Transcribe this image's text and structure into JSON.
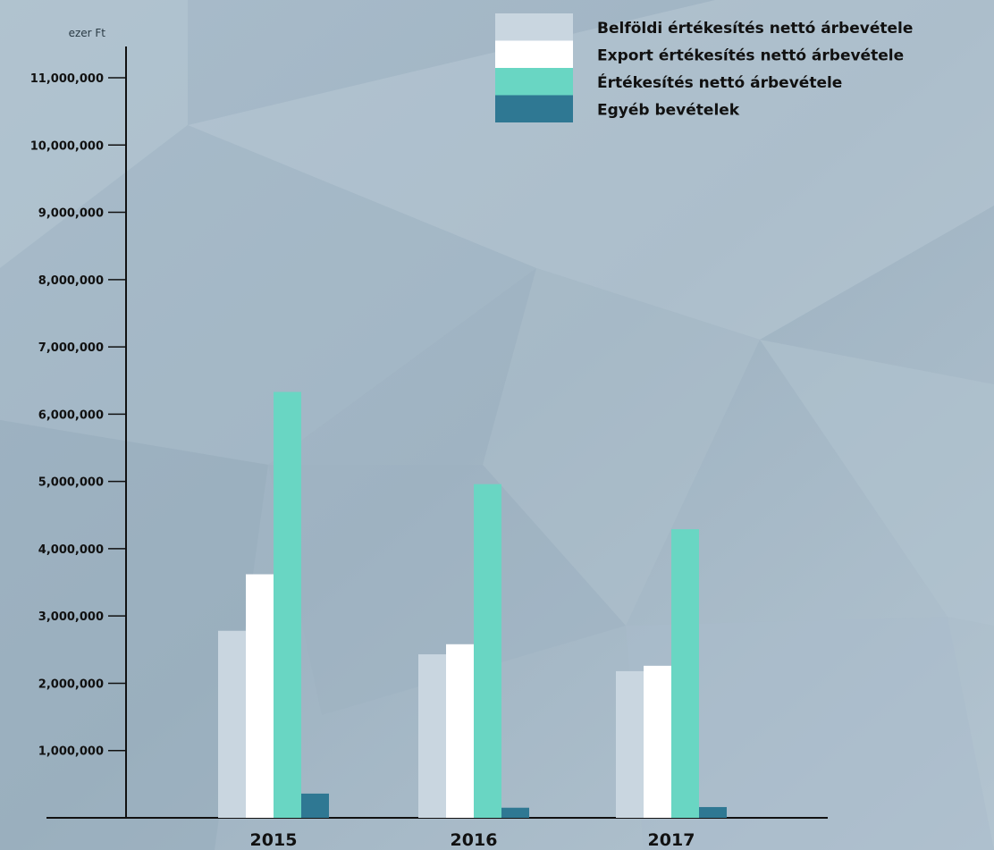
{
  "chart_data": {
    "type": "bar",
    "unit_label": "ezer Ft",
    "categories": [
      "2015",
      "2016",
      "2017"
    ],
    "series": [
      {
        "name": "Belföldi értékesítés nettó árbevétele",
        "color": "#c9d6e0",
        "values": [
          2780000,
          2430000,
          2180000
        ]
      },
      {
        "name": "Export értékesítés nettó árbevétele",
        "color": "#ffffff",
        "values": [
          3620000,
          2580000,
          2260000
        ]
      },
      {
        "name": "Értékesítés nettó árbevétele",
        "color": "#69d6c3",
        "values": [
          6330000,
          4960000,
          4290000
        ]
      },
      {
        "name": "Egyéb bevételek",
        "color": "#2f7893",
        "values": [
          360000,
          150000,
          160000
        ]
      }
    ],
    "yticks": [
      1000000,
      2000000,
      3000000,
      4000000,
      5000000,
      6000000,
      7000000,
      8000000,
      9000000,
      10000000,
      11000000
    ],
    "ytick_labels": [
      "1,000,000",
      "2,000,000",
      "3,000,000",
      "4,000,000",
      "5,000,000",
      "6,000,000",
      "7,000,000",
      "8,000,000",
      "9,000,000",
      "10,000,000",
      "11,000,000"
    ],
    "ylim": [
      0,
      11000000
    ],
    "legend_position": "top-right",
    "grid": false
  }
}
